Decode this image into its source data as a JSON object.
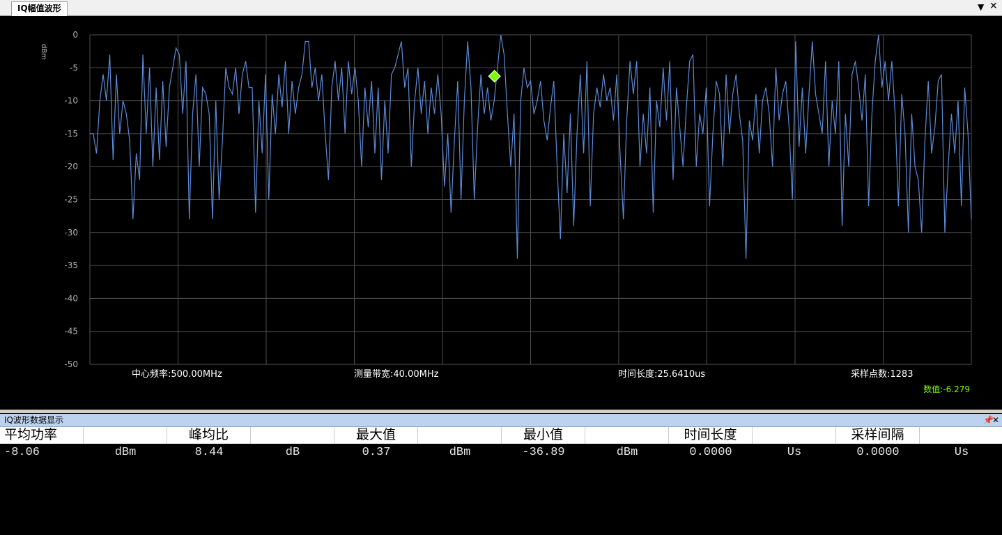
{
  "tab": {
    "title": "IQ幅值波形"
  },
  "chart_data": {
    "type": "line",
    "y_label": "dBm",
    "color": "#5b8bd9",
    "grid": true,
    "ylim": [
      -50,
      0
    ],
    "yticks": [
      0,
      -5,
      -10,
      -15,
      -20,
      -25,
      -30,
      -35,
      -40,
      -45,
      -50
    ],
    "values": [
      -15,
      -15,
      -18,
      -10,
      -6,
      -10,
      -3,
      -19,
      -6,
      -15,
      -10,
      -12,
      -16,
      -28,
      -18,
      -22,
      -3,
      -15,
      -5,
      -20,
      -8,
      -19,
      -7,
      -17,
      -8,
      -5,
      -2,
      -3,
      -12,
      -4,
      -28,
      -12,
      -6,
      -20,
      -8,
      -9,
      -12,
      -28,
      -10,
      -25,
      -16,
      -5,
      -8,
      -9,
      -5,
      -12,
      -6,
      -4,
      -8,
      -8,
      -27,
      -10,
      -18,
      -6,
      -25,
      -9,
      -15,
      -6,
      -11,
      -4,
      -15,
      -7,
      -12,
      -8,
      -6,
      -1,
      -1,
      -8,
      -5,
      -10,
      -6,
      -15,
      -22,
      -8,
      -4,
      -10,
      -5,
      -15,
      -4,
      -9,
      -5,
      -10,
      -20,
      -8,
      -14,
      -7,
      -18,
      -8,
      -22,
      -10,
      -18,
      -6,
      -5,
      -3,
      -1,
      -8,
      -5,
      -20,
      -10,
      -5,
      -12,
      -7,
      -15,
      -8,
      -12,
      -6,
      -12,
      -23,
      -15,
      -27,
      -16,
      -7,
      -25,
      -10,
      -1,
      -8,
      -25,
      -14,
      -6,
      -12,
      -8,
      -13,
      -10,
      -5,
      0,
      -3,
      -12,
      -20,
      -12,
      -34,
      -10,
      -5,
      -8,
      -7,
      -12,
      -10,
      -7,
      -13,
      -16,
      -11,
      -7,
      -20,
      -31,
      -15,
      -24,
      -12,
      -29,
      -15,
      -6,
      -18,
      -4,
      -26,
      -12,
      -8,
      -11,
      -6,
      -10,
      -8,
      -13,
      -6,
      -18,
      -28,
      -13,
      -4,
      -9,
      -4,
      -20,
      -12,
      -18,
      -8,
      -27,
      -10,
      -14,
      -5,
      -13,
      -4,
      -22,
      -8,
      -14,
      -20,
      -11,
      -4,
      -3,
      -20,
      -12,
      -15,
      -8,
      -26,
      -15,
      -7,
      -9,
      -20,
      -6,
      -15,
      -9,
      -6,
      -12,
      -16,
      -34,
      -13,
      -16,
      -9,
      -18,
      -10,
      -8,
      -12,
      -20,
      -5,
      -13,
      -9,
      -7,
      -14,
      -25,
      -1,
      -17,
      -8,
      -18,
      -9,
      -1,
      -9,
      -12,
      -15,
      -4,
      -20,
      -10,
      -15,
      -4,
      -29,
      -12,
      -20,
      -6,
      -4,
      -8,
      -13,
      -6,
      -26,
      -12,
      -4,
      0,
      -8,
      -4,
      -10,
      -4,
      -12,
      -26,
      -9,
      -15,
      -30,
      -12,
      -20,
      -22,
      -30,
      -16,
      -7,
      -18,
      -14,
      -7,
      -6,
      -30,
      -20,
      -12,
      -18,
      -10,
      -26,
      -8,
      -15,
      -28
    ],
    "marker": {
      "value": -6.279,
      "label": "数值:-6.279",
      "color": "#7cfc00"
    },
    "info": [
      "中心频率:500.00MHz",
      "测量带宽:40.00MHz",
      "时间长度:25.6410us",
      "采样点数:1283"
    ]
  },
  "table": {
    "title": "IQ波形数据显示",
    "header": [
      "平均功率",
      "峰均比",
      "最大值",
      "最小值",
      "时间长度",
      "采样间隔"
    ],
    "rows": [
      [
        "-8.06",
        "dBm",
        "8.44",
        "dB",
        "0.37",
        "dBm",
        "-36.89",
        "dBm",
        "0.0000",
        "Us",
        "0.0000",
        "Us"
      ]
    ]
  }
}
